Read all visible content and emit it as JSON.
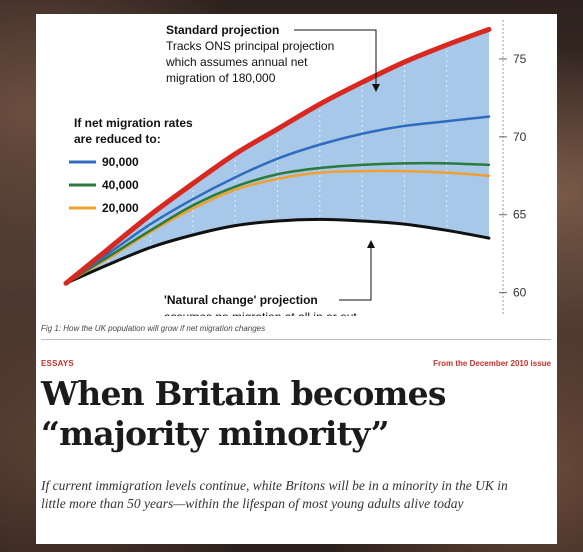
{
  "chart_data": {
    "type": "line",
    "title": "",
    "xlabel": "",
    "ylabel": "",
    "x": [
      0,
      1,
      2,
      3,
      4,
      5,
      6,
      7,
      8,
      9,
      10
    ],
    "ylim": [
      58.5,
      77.5
    ],
    "yticks": [
      "60",
      "65",
      "70",
      "75"
    ],
    "ytick_values": [
      60,
      65,
      70,
      75
    ],
    "grid": false,
    "series": [
      {
        "name": "Standard projection",
        "color": "#d9281f",
        "values": [
          60.6,
          62.8,
          65.0,
          67.0,
          68.9,
          70.5,
          72.1,
          73.5,
          74.8,
          75.9,
          76.9
        ]
      },
      {
        "name": "90,000",
        "color": "#2f6cc0",
        "values": [
          60.6,
          62.5,
          64.4,
          66.0,
          67.4,
          68.6,
          69.5,
          70.2,
          70.7,
          71.0,
          71.3
        ]
      },
      {
        "name": "40,000",
        "color": "#2a7a3c",
        "values": [
          60.6,
          62.3,
          64.0,
          65.6,
          66.8,
          67.6,
          68.0,
          68.2,
          68.3,
          68.3,
          68.2
        ]
      },
      {
        "name": "20,000",
        "color": "#f0a030",
        "values": [
          60.6,
          62.2,
          63.9,
          65.4,
          66.6,
          67.3,
          67.7,
          67.8,
          67.8,
          67.7,
          67.5
        ]
      },
      {
        "name": "'Natural change' projection",
        "color": "#111111",
        "values": [
          60.6,
          61.8,
          62.9,
          63.7,
          64.3,
          64.6,
          64.7,
          64.6,
          64.4,
          64.0,
          63.5
        ]
      }
    ],
    "annotations": {
      "standard_title": "Standard projection",
      "standard_lines": [
        "Tracks ONS principal projection",
        "which assumes annual net",
        "migration of 180,000"
      ],
      "legend_title_lines": [
        "If net migration rates",
        "are reduced to:"
      ],
      "natural_title": "'Natural change' projection",
      "natural_sub": "assumes no migration at all in or out"
    },
    "fill_color": "#a8c8ea"
  },
  "article": {
    "fig_caption": "Fig 1: How the UK population will grow if net migration changes",
    "section": "ESSAYS",
    "issue": "From the December 2010 issue",
    "headline_line1": "When Britain becomes",
    "headline_line2": "“majority minority”",
    "standfirst": "If current immigration levels continue, white Britons will be in a minority in the UK in little more than 50 years—within the lifespan of most young adults alive today"
  }
}
